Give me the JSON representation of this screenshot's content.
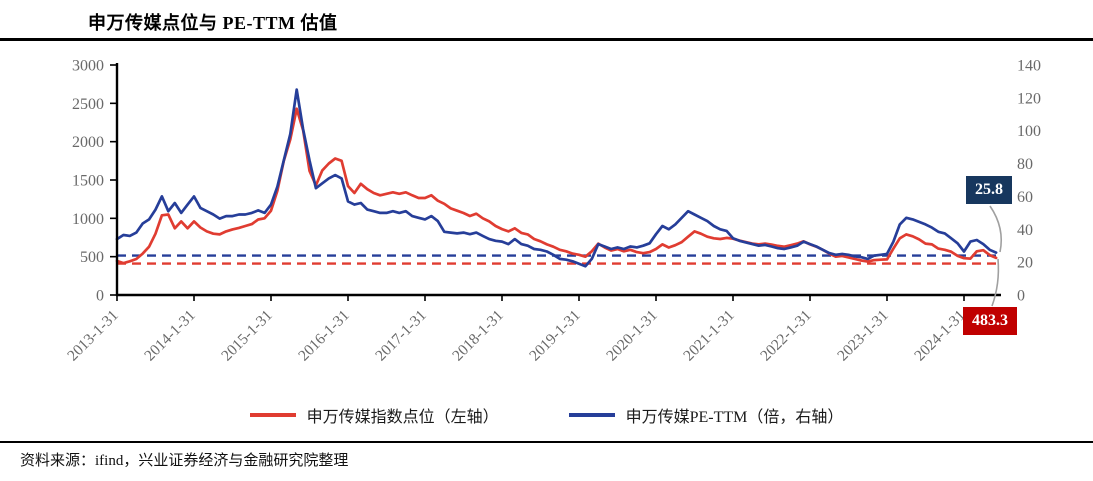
{
  "title": "申万传媒点位与 PE-TTM 估值",
  "source": "资料来源：ifind，兴业证券经济与金融研究院整理",
  "legend": [
    {
      "label": "申万传媒指数点位（左轴）",
      "color": "#E03C31"
    },
    {
      "label": "申万传媒PE-TTM（倍，右轴）",
      "color": "#263E99"
    }
  ],
  "callouts": {
    "pe_value": "25.8",
    "index_value": "483.3",
    "pe_box_color": "#17375E",
    "index_box_color": "#C00000",
    "leader_color": "#A0A0A0"
  },
  "colors": {
    "index_line": "#E03C31",
    "pe_line": "#263E99",
    "axis": "#000000",
    "tick_label": "#696969",
    "background": "#FFFFFF"
  },
  "chart_data": {
    "type": "line",
    "title": "申万传媒点位与 PE-TTM 估值",
    "frequency": "monthly",
    "x_start": "2013-01",
    "x_end": "2024-06",
    "x_tick_labels": [
      "2013-1-31",
      "2014-1-31",
      "2015-1-31",
      "2016-1-31",
      "2017-1-31",
      "2018-1-31",
      "2019-1-31",
      "2020-1-31",
      "2021-1-31",
      "2022-1-31",
      "2023-1-31",
      "2024-1-31"
    ],
    "left_axis": {
      "ticks": [
        0,
        500,
        1000,
        1500,
        2000,
        2500,
        3000
      ],
      "range": [
        0,
        3000
      ]
    },
    "right_axis": {
      "ticks": [
        0,
        20,
        40,
        60,
        80,
        100,
        120,
        140
      ],
      "range": [
        0,
        140
      ]
    },
    "grid": false,
    "legend_position": "bottom",
    "series": [
      {
        "name": "申万传媒指数点位（左轴）",
        "axis": "left",
        "color": "#E03C31",
        "values": [
          445,
          415,
          440,
          470,
          540,
          630,
          800,
          1040,
          1050,
          870,
          960,
          870,
          960,
          880,
          830,
          800,
          790,
          830,
          855,
          875,
          900,
          925,
          985,
          1000,
          1100,
          1360,
          1750,
          2030,
          2430,
          2150,
          1620,
          1430,
          1625,
          1715,
          1780,
          1750,
          1420,
          1330,
          1450,
          1380,
          1330,
          1300,
          1320,
          1340,
          1320,
          1340,
          1300,
          1265,
          1265,
          1300,
          1230,
          1190,
          1130,
          1100,
          1070,
          1030,
          1060,
          1000,
          960,
          900,
          860,
          830,
          870,
          810,
          790,
          730,
          700,
          660,
          630,
          590,
          570,
          540,
          525,
          500,
          570,
          670,
          620,
          580,
          600,
          570,
          590,
          560,
          545,
          560,
          600,
          660,
          620,
          650,
          690,
          760,
          830,
          800,
          760,
          740,
          730,
          745,
          735,
          710,
          690,
          670,
          660,
          670,
          658,
          640,
          630,
          650,
          670,
          700,
          660,
          630,
          590,
          540,
          500,
          510,
          490,
          470,
          450,
          435,
          455,
          460,
          465,
          605,
          740,
          790,
          765,
          725,
          670,
          660,
          605,
          590,
          565,
          510,
          480,
          475,
          570,
          585,
          520,
          483.3
        ]
      },
      {
        "name": "申万传媒PE-TTM（倍，右轴）",
        "axis": "right",
        "color": "#263E99",
        "values": [
          34,
          36.5,
          36,
          38,
          43.5,
          46,
          52,
          60,
          51,
          56,
          50,
          55,
          60,
          53,
          51,
          49,
          46.5,
          48,
          48,
          49,
          49,
          50,
          51.5,
          50,
          55,
          66,
          82,
          98,
          125,
          101,
          82,
          65,
          68,
          71,
          73,
          71,
          57,
          55,
          56,
          52,
          51,
          50,
          50,
          51,
          50,
          51,
          48,
          47,
          46,
          48,
          45,
          38.5,
          38,
          37.5,
          38,
          37,
          38,
          36,
          34,
          33,
          32.5,
          31,
          34,
          31,
          30,
          28,
          27.5,
          26.5,
          24.5,
          22,
          21.5,
          20.5,
          19,
          17.5,
          22,
          31,
          29.5,
          28,
          29,
          28,
          29.5,
          29,
          30,
          31.5,
          37,
          42,
          40,
          43,
          47,
          51,
          49,
          47,
          45,
          42,
          40,
          39,
          34.5,
          33,
          32,
          31,
          30,
          30.5,
          29.5,
          28.5,
          28,
          29,
          30,
          32.5,
          31,
          29.5,
          27.5,
          25.5,
          24.5,
          25,
          24.5,
          23.5,
          23,
          22,
          24,
          24.5,
          25,
          32.5,
          43,
          47,
          46,
          44.5,
          43,
          41,
          38.5,
          37.5,
          34.5,
          31.5,
          26.5,
          32.5,
          33.5,
          31,
          27.5,
          25.8
        ]
      }
    ],
    "reference_lines": [
      {
        "axis": "right",
        "value": 24,
        "style": "dashed",
        "color": "#263E99"
      },
      {
        "axis": "left",
        "value": 410,
        "style": "dashed",
        "color": "#E03C31"
      }
    ],
    "end_labels": [
      {
        "series": "申万传媒PE-TTM（倍，右轴）",
        "value": 25.8
      },
      {
        "series": "申万传媒指数点位（左轴）",
        "value": 483.3
      }
    ]
  }
}
